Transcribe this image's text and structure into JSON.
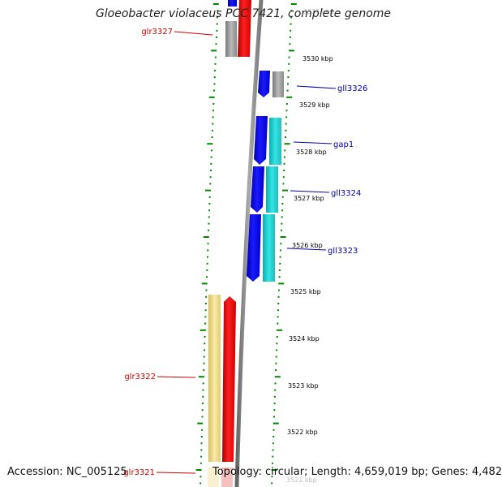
{
  "title": "Gloeobacter violaceus PCC 7421, complete genome",
  "accession_text": "Accession: NC_005125",
  "summary_text": "Topology: circular; Length: 4,659,019 bp; Genes: 4,482",
  "ticks": [
    "3531 kbp",
    "3530 kbp",
    "3529 kbp",
    "3528 kbp",
    "3527 kbp",
    "3526 kbp",
    "3525 kbp",
    "3524 kbp",
    "3523 kbp",
    "3522 kbp",
    "3521 kbp"
  ],
  "genes": [
    {
      "name": "glr3327",
      "strand": "reverse"
    },
    {
      "name": "gll3326",
      "strand": "forward"
    },
    {
      "name": "gap1",
      "strand": "forward"
    },
    {
      "name": "gll3324",
      "strand": "forward"
    },
    {
      "name": "gll3323",
      "strand": "forward"
    },
    {
      "name": "glr3322",
      "strand": "reverse"
    },
    {
      "name": "glr3321",
      "strand": "reverse"
    }
  ],
  "colors": {
    "forward_cds": "#0000ee",
    "forward_feature": "#22cccc",
    "reverse_cds": "#ff0000",
    "reverse_feature": "#eedd88",
    "reverse_label": "#cc0000",
    "forward_label": "#0000aa",
    "backbone": "#888888",
    "tick": "#008800",
    "grey_feature": "#aaaaaa"
  }
}
